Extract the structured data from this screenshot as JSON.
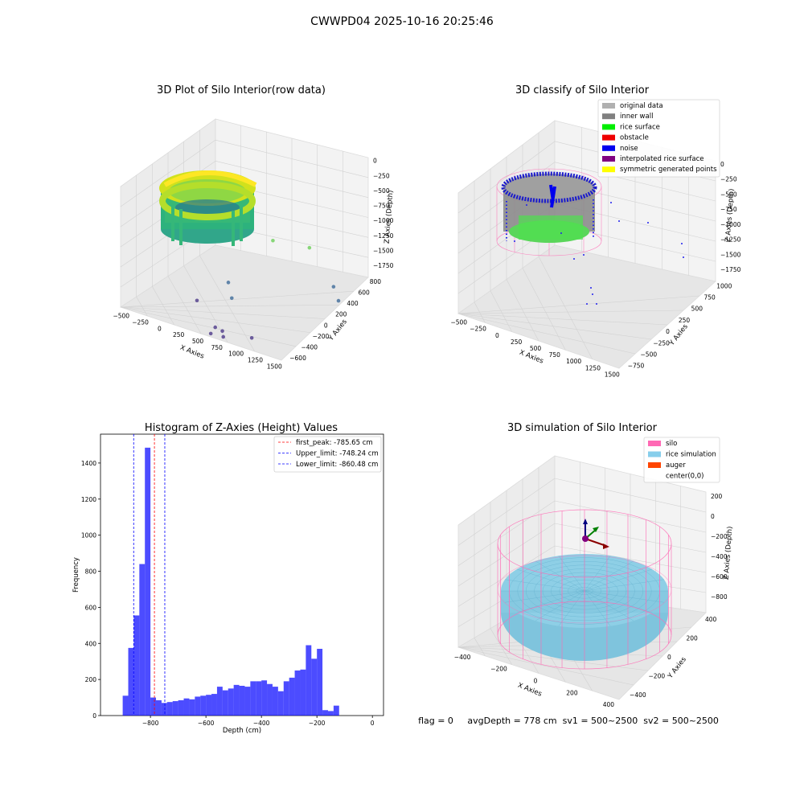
{
  "figure": {
    "suptitle": "CWWPD04 2025-10-16 20:25:46",
    "footer": "flag = 0     avgDepth = 778 cm  sv1 = 500~2500  sv2 = 500~2500"
  },
  "panels": {
    "raw": {
      "title": "3D Plot of Silo Interior(row data)",
      "xlabel": "X Axies",
      "ylabel": "Y Axies",
      "zlabel": "Z Axies (Depth)",
      "xticks": [
        "−500",
        "−250",
        "0",
        "250",
        "500",
        "750",
        "1000",
        "1250",
        "1500"
      ],
      "yticks": [
        "−600",
        "−400",
        "−200",
        "0",
        "200",
        "400",
        "600",
        "800"
      ],
      "zticks": [
        "0",
        "−250",
        "−500",
        "−750",
        "−1000",
        "−1250",
        "−1500",
        "−1750"
      ]
    },
    "classify": {
      "title": "3D classify of Silo Interior",
      "xlabel": "X Axies",
      "ylabel": "Y Axies",
      "zlabel": "Z Axies (Depth)",
      "xticks": [
        "−500",
        "−250",
        "0",
        "250",
        "500",
        "750",
        "1000",
        "1250",
        "1500"
      ],
      "yticks": [
        "−750",
        "−500",
        "−250",
        "0",
        "250",
        "500",
        "750",
        "1000"
      ],
      "zticks": [
        "0",
        "−250",
        "−500",
        "−750",
        "−1000",
        "−1250",
        "−1500",
        "−1750"
      ],
      "legend": [
        {
          "label": "original data",
          "color": "#b0b0b0"
        },
        {
          "label": "inner wall",
          "color": "#808080"
        },
        {
          "label": "rice surface",
          "color": "#00ee00"
        },
        {
          "label": "obstacle",
          "color": "#ee0000"
        },
        {
          "label": "noise",
          "color": "#0000ee"
        },
        {
          "label": "interpolated rice surface",
          "color": "#800080"
        },
        {
          "label": "symmetric generated points",
          "color": "#ffff00"
        }
      ]
    },
    "simulation": {
      "title": "3D simulation of Silo Interior",
      "xlabel": "X Axies",
      "ylabel": "Y Axies",
      "zlabel": "Z Axies (Depth)",
      "xticks": [
        "−400",
        "−200",
        "0",
        "200",
        "400"
      ],
      "yticks": [
        "−400",
        "−200",
        "0",
        "200",
        "400"
      ],
      "zticks": [
        "200",
        "0",
        "−200",
        "−400",
        "−600",
        "−800"
      ],
      "legend": [
        {
          "label": "silo",
          "color": "#ff69b4"
        },
        {
          "label": "rice simulation",
          "color": "#87ceeb"
        },
        {
          "label": "auger",
          "color": "#ff4500"
        },
        {
          "label": "center(0,0)",
          "color": ""
        }
      ]
    }
  },
  "chart_data": [
    {
      "type": "scatter",
      "title": "3D Plot of Silo Interior(row data)",
      "xlabel": "X Axies",
      "ylabel": "Y Axies",
      "zlabel": "Z Axies (Depth)",
      "xlim": [
        -500,
        1500
      ],
      "ylim": [
        -600,
        800
      ],
      "zlim": [
        -1750,
        0
      ],
      "colormap": "viridis",
      "outliers": [
        {
          "x": 300,
          "y": 100,
          "z": -1300
        },
        {
          "x": 420,
          "y": 0,
          "z": -1450
        },
        {
          "x": 700,
          "y": 300,
          "z": -600
        },
        {
          "x": 1000,
          "y": 500,
          "z": -650
        },
        {
          "x": 1300,
          "y": 500,
          "z": -1100
        },
        {
          "x": 1400,
          "y": 450,
          "z": -1250
        },
        {
          "x": 180,
          "y": -250,
          "z": -1500
        },
        {
          "x": 600,
          "y": -500,
          "z": -1650
        },
        {
          "x": 650,
          "y": -450,
          "z": -1700
        },
        {
          "x": 700,
          "y": -500,
          "z": -1750
        },
        {
          "x": 560,
          "y": -520,
          "z": -1750
        },
        {
          "x": 900,
          "y": -300,
          "z": -1750
        }
      ]
    },
    {
      "type": "scatter",
      "title": "3D classify of Silo Interior",
      "xlabel": "X Axies",
      "ylabel": "Y Axies",
      "zlabel": "Z Axies (Depth)",
      "xlim": [
        -500,
        1500
      ],
      "ylim": [
        -750,
        1000
      ],
      "zlim": [
        -1750,
        0
      ],
      "series": [
        {
          "name": "original data"
        },
        {
          "name": "inner wall"
        },
        {
          "name": "rice surface"
        },
        {
          "name": "obstacle"
        },
        {
          "name": "noise"
        },
        {
          "name": "interpolated rice surface"
        },
        {
          "name": "symmetric generated points"
        }
      ]
    },
    {
      "type": "bar",
      "title": "Histogram of Z-Axies (Height) Values",
      "xlabel": "Depth (cm)",
      "ylabel": "Frequency",
      "xlim": [
        -980,
        40
      ],
      "ylim": [
        0,
        1560
      ],
      "xticks": [
        -800,
        -600,
        -400,
        -200,
        0
      ],
      "yticks": [
        0,
        200,
        400,
        600,
        800,
        1000,
        1200,
        1400
      ],
      "bin_start": -900,
      "bin_width": 20,
      "values": [
        110,
        375,
        555,
        840,
        1485,
        100,
        85,
        70,
        75,
        80,
        85,
        95,
        90,
        105,
        110,
        115,
        120,
        160,
        140,
        150,
        170,
        165,
        160,
        190,
        190,
        195,
        175,
        160,
        135,
        190,
        210,
        250,
        255,
        390,
        315,
        370,
        30,
        25,
        55
      ],
      "vlines": [
        {
          "name": "first_peak: -785.65 cm",
          "x": -785.65,
          "color": "#ff0000"
        },
        {
          "name": "Upper_limit: -748.24 cm",
          "x": -748.24,
          "color": "#0000ff"
        },
        {
          "name": "Lower_limit: -860.48 cm",
          "x": -860.48,
          "color": "#0000ff"
        }
      ],
      "legend": "top-right"
    },
    {
      "type": "scatter",
      "title": "3D simulation of Silo Interior",
      "xlabel": "X Axies",
      "ylabel": "Y Axies",
      "zlabel": "Z Axies (Depth)",
      "xlim": [
        -500,
        500
      ],
      "ylim": [
        -500,
        500
      ],
      "zlim": [
        -900,
        300
      ],
      "series": [
        {
          "name": "silo"
        },
        {
          "name": "rice simulation"
        },
        {
          "name": "auger"
        },
        {
          "name": "center(0,0)"
        }
      ]
    }
  ]
}
